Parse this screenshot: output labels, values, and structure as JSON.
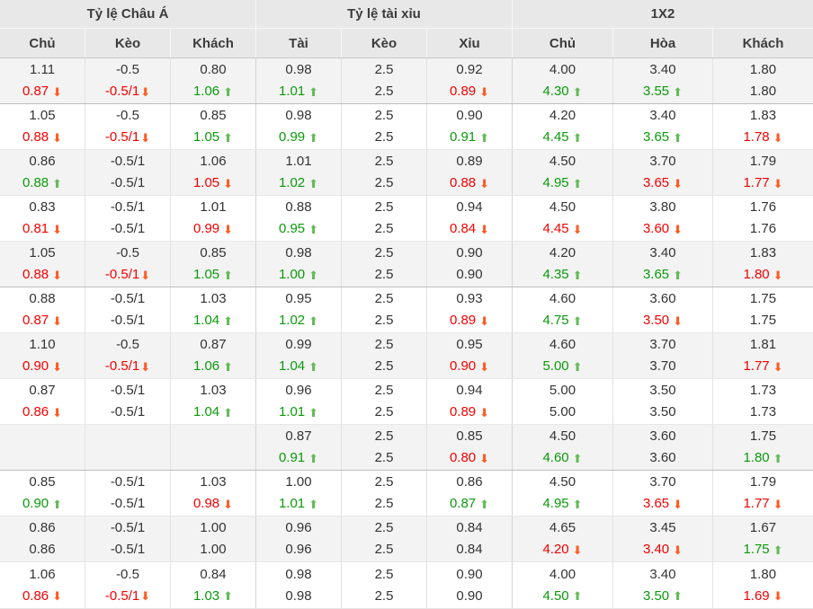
{
  "table": {
    "colors": {
      "up_text": "#0a9a0a",
      "down_text": "#f40000",
      "up_arrow": "#62ba56",
      "down_arrow": "#ff5a22",
      "header_bg": "#e8e8e8",
      "alt_row_bg": "#f3f3f3",
      "neutral_text": "#333333"
    },
    "groups": [
      {
        "label": "Tỷ lệ Châu Á",
        "columns": [
          "Chủ",
          "Kèo",
          "Khách"
        ]
      },
      {
        "label": "Tỷ lệ tài xỉu",
        "columns": [
          "Tài",
          "Kèo",
          "Xỉu"
        ]
      },
      {
        "label": "1X2",
        "columns": [
          "Chủ",
          "Hòa",
          "Khách"
        ]
      }
    ],
    "rows": [
      {
        "group_end": true,
        "cells": [
          {
            "prev": "1.11",
            "cur": "0.87",
            "trend": "down"
          },
          {
            "prev": "-0.5",
            "cur": "-0.5/1",
            "trend": "down"
          },
          {
            "prev": "0.80",
            "cur": "1.06",
            "trend": "up"
          },
          {
            "prev": "0.98",
            "cur": "1.01",
            "trend": "up"
          },
          {
            "prev": "2.5",
            "cur": "2.5",
            "trend": "none"
          },
          {
            "prev": "0.92",
            "cur": "0.89",
            "trend": "down"
          },
          {
            "prev": "4.00",
            "cur": "4.30",
            "trend": "up"
          },
          {
            "prev": "3.40",
            "cur": "3.55",
            "trend": "up"
          },
          {
            "prev": "1.80",
            "cur": "1.80",
            "trend": "none"
          }
        ]
      },
      {
        "group_end": false,
        "cells": [
          {
            "prev": "1.05",
            "cur": "0.88",
            "trend": "down"
          },
          {
            "prev": "-0.5",
            "cur": "-0.5/1",
            "trend": "down"
          },
          {
            "prev": "0.85",
            "cur": "1.05",
            "trend": "up"
          },
          {
            "prev": "0.98",
            "cur": "0.99",
            "trend": "up"
          },
          {
            "prev": "2.5",
            "cur": "2.5",
            "trend": "none"
          },
          {
            "prev": "0.90",
            "cur": "0.91",
            "trend": "up"
          },
          {
            "prev": "4.20",
            "cur": "4.45",
            "trend": "up"
          },
          {
            "prev": "3.40",
            "cur": "3.65",
            "trend": "up"
          },
          {
            "prev": "1.83",
            "cur": "1.78",
            "trend": "down"
          }
        ]
      },
      {
        "group_end": false,
        "cells": [
          {
            "prev": "0.86",
            "cur": "0.88",
            "trend": "up"
          },
          {
            "prev": "-0.5/1",
            "cur": "-0.5/1",
            "trend": "none"
          },
          {
            "prev": "1.06",
            "cur": "1.05",
            "trend": "down"
          },
          {
            "prev": "1.01",
            "cur": "1.02",
            "trend": "up"
          },
          {
            "prev": "2.5",
            "cur": "2.5",
            "trend": "none"
          },
          {
            "prev": "0.89",
            "cur": "0.88",
            "trend": "down"
          },
          {
            "prev": "4.50",
            "cur": "4.95",
            "trend": "up"
          },
          {
            "prev": "3.70",
            "cur": "3.65",
            "trend": "down"
          },
          {
            "prev": "1.79",
            "cur": "1.77",
            "trend": "down"
          }
        ]
      },
      {
        "group_end": false,
        "cells": [
          {
            "prev": "0.83",
            "cur": "0.81",
            "trend": "down"
          },
          {
            "prev": "-0.5/1",
            "cur": "-0.5/1",
            "trend": "none"
          },
          {
            "prev": "1.01",
            "cur": "0.99",
            "trend": "down"
          },
          {
            "prev": "0.88",
            "cur": "0.95",
            "trend": "up"
          },
          {
            "prev": "2.5",
            "cur": "2.5",
            "trend": "none"
          },
          {
            "prev": "0.94",
            "cur": "0.84",
            "trend": "down"
          },
          {
            "prev": "4.50",
            "cur": "4.45",
            "trend": "down"
          },
          {
            "prev": "3.80",
            "cur": "3.60",
            "trend": "down"
          },
          {
            "prev": "1.76",
            "cur": "1.76",
            "trend": "none"
          }
        ]
      },
      {
        "group_end": true,
        "cells": [
          {
            "prev": "1.05",
            "cur": "0.88",
            "trend": "down"
          },
          {
            "prev": "-0.5",
            "cur": "-0.5/1",
            "trend": "down"
          },
          {
            "prev": "0.85",
            "cur": "1.05",
            "trend": "up"
          },
          {
            "prev": "0.98",
            "cur": "1.00",
            "trend": "up"
          },
          {
            "prev": "2.5",
            "cur": "2.5",
            "trend": "none"
          },
          {
            "prev": "0.90",
            "cur": "0.90",
            "trend": "none"
          },
          {
            "prev": "4.20",
            "cur": "4.35",
            "trend": "up"
          },
          {
            "prev": "3.40",
            "cur": "3.65",
            "trend": "up"
          },
          {
            "prev": "1.83",
            "cur": "1.80",
            "trend": "down"
          }
        ]
      },
      {
        "group_end": false,
        "cells": [
          {
            "prev": "0.88",
            "cur": "0.87",
            "trend": "down"
          },
          {
            "prev": "-0.5/1",
            "cur": "-0.5/1",
            "trend": "none"
          },
          {
            "prev": "1.03",
            "cur": "1.04",
            "trend": "up"
          },
          {
            "prev": "0.95",
            "cur": "1.02",
            "trend": "up"
          },
          {
            "prev": "2.5",
            "cur": "2.5",
            "trend": "none"
          },
          {
            "prev": "0.93",
            "cur": "0.89",
            "trend": "down"
          },
          {
            "prev": "4.60",
            "cur": "4.75",
            "trend": "up"
          },
          {
            "prev": "3.60",
            "cur": "3.50",
            "trend": "down"
          },
          {
            "prev": "1.75",
            "cur": "1.75",
            "trend": "none"
          }
        ]
      },
      {
        "group_end": false,
        "cells": [
          {
            "prev": "1.10",
            "cur": "0.90",
            "trend": "down"
          },
          {
            "prev": "-0.5",
            "cur": "-0.5/1",
            "trend": "down"
          },
          {
            "prev": "0.87",
            "cur": "1.06",
            "trend": "up"
          },
          {
            "prev": "0.99",
            "cur": "1.04",
            "trend": "up"
          },
          {
            "prev": "2.5",
            "cur": "2.5",
            "trend": "none"
          },
          {
            "prev": "0.95",
            "cur": "0.90",
            "trend": "down"
          },
          {
            "prev": "4.60",
            "cur": "5.00",
            "trend": "up"
          },
          {
            "prev": "3.70",
            "cur": "3.70",
            "trend": "none"
          },
          {
            "prev": "1.81",
            "cur": "1.77",
            "trend": "down"
          }
        ]
      },
      {
        "group_end": false,
        "cells": [
          {
            "prev": "0.87",
            "cur": "0.86",
            "trend": "down"
          },
          {
            "prev": "-0.5/1",
            "cur": "-0.5/1",
            "trend": "none"
          },
          {
            "prev": "1.03",
            "cur": "1.04",
            "trend": "up"
          },
          {
            "prev": "0.96",
            "cur": "1.01",
            "trend": "up"
          },
          {
            "prev": "2.5",
            "cur": "2.5",
            "trend": "none"
          },
          {
            "prev": "0.94",
            "cur": "0.89",
            "trend": "down"
          },
          {
            "prev": "5.00",
            "cur": "5.00",
            "trend": "none"
          },
          {
            "prev": "3.50",
            "cur": "3.50",
            "trend": "none"
          },
          {
            "prev": "1.73",
            "cur": "1.73",
            "trend": "none"
          }
        ]
      },
      {
        "group_end": true,
        "cells": [
          {
            "prev": "",
            "cur": "",
            "trend": "none"
          },
          {
            "prev": "",
            "cur": "",
            "trend": "none"
          },
          {
            "prev": "",
            "cur": "",
            "trend": "none"
          },
          {
            "prev": "0.87",
            "cur": "0.91",
            "trend": "up"
          },
          {
            "prev": "2.5",
            "cur": "2.5",
            "trend": "none"
          },
          {
            "prev": "0.85",
            "cur": "0.80",
            "trend": "down"
          },
          {
            "prev": "4.50",
            "cur": "4.60",
            "trend": "up"
          },
          {
            "prev": "3.60",
            "cur": "3.60",
            "trend": "none"
          },
          {
            "prev": "1.75",
            "cur": "1.80",
            "trend": "up"
          }
        ]
      },
      {
        "group_end": false,
        "cells": [
          {
            "prev": "0.85",
            "cur": "0.90",
            "trend": "up"
          },
          {
            "prev": "-0.5/1",
            "cur": "-0.5/1",
            "trend": "none"
          },
          {
            "prev": "1.03",
            "cur": "0.98",
            "trend": "down"
          },
          {
            "prev": "1.00",
            "cur": "1.01",
            "trend": "up"
          },
          {
            "prev": "2.5",
            "cur": "2.5",
            "trend": "none"
          },
          {
            "prev": "0.86",
            "cur": "0.87",
            "trend": "up"
          },
          {
            "prev": "4.50",
            "cur": "4.95",
            "trend": "up"
          },
          {
            "prev": "3.70",
            "cur": "3.65",
            "trend": "down"
          },
          {
            "prev": "1.79",
            "cur": "1.77",
            "trend": "down"
          }
        ]
      },
      {
        "group_end": false,
        "cells": [
          {
            "prev": "0.86",
            "cur": "0.86",
            "trend": "none"
          },
          {
            "prev": "-0.5/1",
            "cur": "-0.5/1",
            "trend": "none"
          },
          {
            "prev": "1.00",
            "cur": "1.00",
            "trend": "none"
          },
          {
            "prev": "0.96",
            "cur": "0.96",
            "trend": "none"
          },
          {
            "prev": "2.5",
            "cur": "2.5",
            "trend": "none"
          },
          {
            "prev": "0.84",
            "cur": "0.84",
            "trend": "none"
          },
          {
            "prev": "4.65",
            "cur": "4.20",
            "trend": "down"
          },
          {
            "prev": "3.45",
            "cur": "3.40",
            "trend": "down"
          },
          {
            "prev": "1.67",
            "cur": "1.75",
            "trend": "up"
          }
        ]
      },
      {
        "group_end": false,
        "cells": [
          {
            "prev": "1.06",
            "cur": "0.86",
            "trend": "down"
          },
          {
            "prev": "-0.5",
            "cur": "-0.5/1",
            "trend": "down"
          },
          {
            "prev": "0.84",
            "cur": "1.03",
            "trend": "up"
          },
          {
            "prev": "0.98",
            "cur": "0.98",
            "trend": "none"
          },
          {
            "prev": "2.5",
            "cur": "2.5",
            "trend": "none"
          },
          {
            "prev": "0.90",
            "cur": "0.90",
            "trend": "none"
          },
          {
            "prev": "4.00",
            "cur": "4.50",
            "trend": "up"
          },
          {
            "prev": "3.40",
            "cur": "3.50",
            "trend": "up"
          },
          {
            "prev": "1.80",
            "cur": "1.69",
            "trend": "down"
          }
        ]
      }
    ]
  }
}
